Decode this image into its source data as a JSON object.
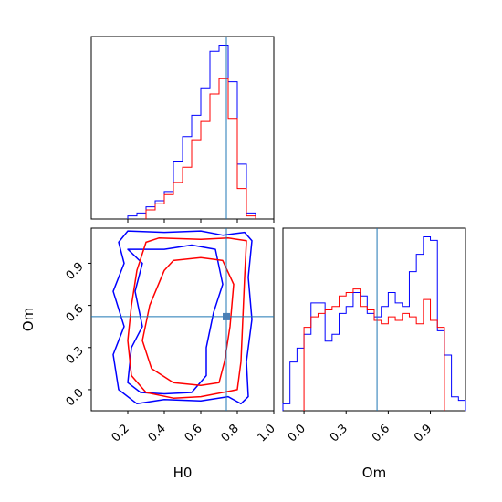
{
  "chart_data": {
    "type": "corner",
    "parameters": [
      "H0",
      "Om"
    ],
    "truth": {
      "H0": 0.74,
      "Om": 0.52
    },
    "colors": {
      "series_a": "#0000ff",
      "series_b": "#ff0000",
      "truth": "#1f77b4",
      "truth_marker": "#4a7fb5"
    },
    "axes": {
      "H0": {
        "label": "H0",
        "lim": [
          0.0,
          1.0
        ],
        "ticks": [
          "0.2",
          "0.4",
          "0.6",
          "0.8",
          "1.0"
        ]
      },
      "Om": {
        "label": "Om",
        "lim": [
          -0.15,
          1.15
        ],
        "ticks": [
          "0.0",
          "0.3",
          "0.6",
          "0.9"
        ]
      }
    },
    "panels": [
      {
        "id": "hist-H0",
        "type": "step-histogram",
        "param": "H0",
        "series": [
          {
            "color": "blue",
            "edges": [
              0.2,
              0.25,
              0.3,
              0.35,
              0.4,
              0.45,
              0.5,
              0.55,
              0.6,
              0.65,
              0.7,
              0.75,
              0.8,
              0.85,
              0.9
            ],
            "counts": [
              1,
              2,
              4,
              6,
              9,
              19,
              27,
              34,
              43,
              55,
              57,
              45,
              18,
              2
            ]
          },
          {
            "color": "red",
            "edges": [
              0.3,
              0.35,
              0.4,
              0.45,
              0.5,
              0.55,
              0.6,
              0.65,
              0.7,
              0.75,
              0.8,
              0.85,
              0.9
            ],
            "counts": [
              3,
              5,
              8,
              12,
              17,
              26,
              32,
              41,
              46,
              33,
              10,
              1
            ]
          }
        ]
      },
      {
        "id": "contour-H0-Om",
        "type": "2d-contour",
        "x": "H0",
        "y": "Om",
        "series": [
          {
            "color": "blue",
            "levels": [
              [
                [
                  0.2,
                  1.13
                ],
                [
                  0.4,
                  1.12
                ],
                [
                  0.6,
                  1.13
                ],
                [
                  0.72,
                  1.1
                ],
                [
                  0.84,
                  1.12
                ],
                [
                  0.88,
                  1.06
                ],
                [
                  0.86,
                  0.8
                ],
                [
                  0.88,
                  0.5
                ],
                [
                  0.85,
                  0.2
                ],
                [
                  0.86,
                  -0.05
                ],
                [
                  0.82,
                  -0.1
                ],
                [
                  0.75,
                  -0.05
                ],
                [
                  0.6,
                  -0.08
                ],
                [
                  0.4,
                  -0.07
                ],
                [
                  0.25,
                  -0.1
                ],
                [
                  0.15,
                  0.0
                ],
                [
                  0.12,
                  0.25
                ],
                [
                  0.18,
                  0.45
                ],
                [
                  0.12,
                  0.7
                ],
                [
                  0.18,
                  0.9
                ],
                [
                  0.15,
                  1.05
                ],
                [
                  0.2,
                  1.13
                ]
              ],
              [
                [
                  0.2,
                  1.0
                ],
                [
                  0.4,
                  1.0
                ],
                [
                  0.55,
                  1.03
                ],
                [
                  0.68,
                  1.0
                ],
                [
                  0.72,
                  0.75
                ],
                [
                  0.67,
                  0.55
                ],
                [
                  0.63,
                  0.3
                ],
                [
                  0.63,
                  0.1
                ],
                [
                  0.55,
                  -0.02
                ],
                [
                  0.4,
                  -0.03
                ],
                [
                  0.27,
                  -0.02
                ],
                [
                  0.2,
                  0.05
                ],
                [
                  0.22,
                  0.3
                ],
                [
                  0.28,
                  0.45
                ],
                [
                  0.24,
                  0.7
                ],
                [
                  0.28,
                  0.9
                ],
                [
                  0.2,
                  1.0
                ]
              ]
            ]
          },
          {
            "color": "red",
            "levels": [
              [
                [
                  0.37,
                  1.08
                ],
                [
                  0.6,
                  1.07
                ],
                [
                  0.75,
                  1.08
                ],
                [
                  0.85,
                  1.06
                ],
                [
                  0.84,
                  0.8
                ],
                [
                  0.83,
                  0.5
                ],
                [
                  0.82,
                  0.2
                ],
                [
                  0.8,
                  0.0
                ],
                [
                  0.6,
                  -0.05
                ],
                [
                  0.45,
                  -0.06
                ],
                [
                  0.3,
                  -0.02
                ],
                [
                  0.22,
                  0.1
                ],
                [
                  0.2,
                  0.35
                ],
                [
                  0.22,
                  0.6
                ],
                [
                  0.25,
                  0.85
                ],
                [
                  0.3,
                  1.05
                ],
                [
                  0.37,
                  1.08
                ]
              ],
              [
                [
                  0.45,
                  0.92
                ],
                [
                  0.6,
                  0.94
                ],
                [
                  0.72,
                  0.92
                ],
                [
                  0.78,
                  0.75
                ],
                [
                  0.76,
                  0.45
                ],
                [
                  0.73,
                  0.2
                ],
                [
                  0.7,
                  0.05
                ],
                [
                  0.6,
                  0.03
                ],
                [
                  0.45,
                  0.05
                ],
                [
                  0.33,
                  0.15
                ],
                [
                  0.28,
                  0.35
                ],
                [
                  0.32,
                  0.6
                ],
                [
                  0.4,
                  0.85
                ],
                [
                  0.45,
                  0.92
                ]
              ]
            ]
          }
        ]
      },
      {
        "id": "hist-Om",
        "type": "step-histogram",
        "param": "Om",
        "series": [
          {
            "color": "blue",
            "edges": [
              -0.15,
              -0.1,
              -0.05,
              0.0,
              0.05,
              0.1,
              0.15,
              0.2,
              0.25,
              0.3,
              0.35,
              0.4,
              0.45,
              0.5,
              0.55,
              0.6,
              0.65,
              0.7,
              0.75,
              0.8,
              0.85,
              0.9,
              0.95,
              1.0,
              1.05,
              1.1,
              1.15
            ],
            "counts": [
              2,
              14,
              18,
              22,
              31,
              31,
              20,
              22,
              28,
              30,
              34,
              33,
              28,
              27,
              30,
              34,
              31,
              30,
              40,
              45,
              50,
              49,
              23,
              16,
              4,
              3
            ]
          },
          {
            "color": "red",
            "edges": [
              0.0,
              0.05,
              0.1,
              0.15,
              0.2,
              0.25,
              0.3,
              0.35,
              0.4,
              0.45,
              0.5,
              0.55,
              0.6,
              0.65,
              0.7,
              0.75,
              0.8,
              0.85,
              0.9,
              0.95,
              1.0
            ],
            "counts": [
              24,
              27,
              28,
              29,
              30,
              33,
              34,
              35,
              30,
              29,
              26,
              25,
              27,
              26,
              28,
              27,
              25,
              32,
              26,
              24
            ]
          }
        ]
      }
    ]
  }
}
